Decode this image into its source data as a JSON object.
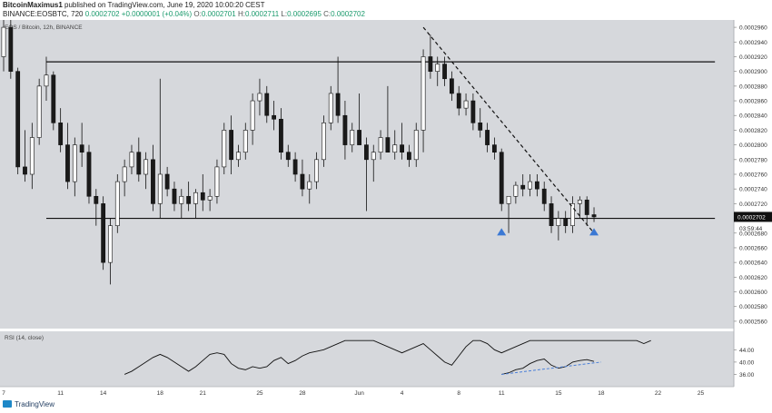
{
  "header": {
    "author": "BitcoinMaximus1",
    "published": "published on TradingView.com, June 19, 2020 10:00:20 CEST",
    "symbol": "BINANCE:EOSBTC, 720",
    "last": "0.0002702",
    "change": "+0.0000001 (+0.04%)",
    "o_label": "O:",
    "o_value": "0.0002701",
    "h_label": "H:",
    "h_value": "0.0002711",
    "l_label": "L:",
    "l_value": "0.0002695",
    "c_label": "C:",
    "c_value": "0.0002702"
  },
  "footer": {
    "brand": "TradingView"
  },
  "colors": {
    "pane": "#d6d8dc",
    "bull": "#ffffff",
    "bear": "#1a1a1a",
    "rsi_line": "#111111",
    "rsi_div": "#4a7fd8",
    "arrow": "#3a78d4",
    "price_tag": "#111111"
  },
  "chart_data": [
    {
      "type": "candlestick",
      "title": "EOS / Bitcoin, 12h, BINANCE",
      "ylim": [
        0.000255,
        0.000297
      ],
      "y_ticks": [
        "0.0002960",
        "0.0002940",
        "0.0002920",
        "0.0002900",
        "0.0002880",
        "0.0002860",
        "0.0002840",
        "0.0002820",
        "0.0002800",
        "0.0002780",
        "0.0002760",
        "0.0002740",
        "0.0002720",
        "0.0002680",
        "0.0002660",
        "0.0002640",
        "0.0002620",
        "0.0002600",
        "0.0002580",
        "0.0002560"
      ],
      "x_ticks": [
        {
          "label": "7",
          "i": 0
        },
        {
          "label": "11",
          "i": 8
        },
        {
          "label": "14",
          "i": 14
        },
        {
          "label": "18",
          "i": 22
        },
        {
          "label": "21",
          "i": 28
        },
        {
          "label": "25",
          "i": 36
        },
        {
          "label": "28",
          "i": 42
        },
        {
          "label": "Jun",
          "i": 50
        },
        {
          "label": "4",
          "i": 56
        },
        {
          "label": "8",
          "i": 64
        },
        {
          "label": "11",
          "i": 70
        },
        {
          "label": "15",
          "i": 78
        },
        {
          "label": "18",
          "i": 84
        },
        {
          "label": "22",
          "i": 92
        },
        {
          "label": "25",
          "i": 98
        }
      ],
      "x_extent": 101,
      "last_price_label": "0.0002702",
      "countdown": "03:59:44",
      "candles": [
        [
          0.000292,
          0.000298,
          0.00029,
          0.000296
        ],
        [
          0.000296,
          0.000297,
          0.000289,
          0.00029
        ],
        [
          0.00029,
          0.0002905,
          0.000276,
          0.000277
        ],
        [
          0.000277,
          0.000282,
          0.000275,
          0.000276
        ],
        [
          0.000276,
          0.000283,
          0.000274,
          0.000281
        ],
        [
          0.000281,
          0.000289,
          0.00028,
          0.000288
        ],
        [
          0.000288,
          0.000292,
          0.000286,
          0.0002895
        ],
        [
          0.0002895,
          0.00029,
          0.000282,
          0.000283
        ],
        [
          0.000283,
          0.000285,
          0.000279,
          0.00028
        ],
        [
          0.00028,
          0.000283,
          0.000274,
          0.000275
        ],
        [
          0.000275,
          0.000281,
          0.000273,
          0.00028
        ],
        [
          0.00028,
          0.000283,
          0.000277,
          0.000279
        ],
        [
          0.000279,
          0.00028,
          0.000272,
          0.000273
        ],
        [
          0.000273,
          0.000274,
          0.000269,
          0.000272
        ],
        [
          0.000272,
          0.000273,
          0.000263,
          0.000264
        ],
        [
          0.000264,
          0.00027,
          0.000261,
          0.000269
        ],
        [
          0.000269,
          0.000276,
          0.000268,
          0.000275
        ],
        [
          0.000275,
          0.000278,
          0.000273,
          0.000277
        ],
        [
          0.000277,
          0.00028,
          0.000276,
          0.000279
        ],
        [
          0.000279,
          0.000281,
          0.000275,
          0.000276
        ],
        [
          0.000276,
          0.000279,
          0.000274,
          0.000278
        ],
        [
          0.000278,
          0.00028,
          0.000271,
          0.000272
        ],
        [
          0.000272,
          0.000289,
          0.00027,
          0.000276
        ],
        [
          0.000276,
          0.000277,
          0.000273,
          0.000274
        ],
        [
          0.000274,
          0.000275,
          0.000271,
          0.000272
        ],
        [
          0.000272,
          0.000274,
          0.00027,
          0.000273
        ],
        [
          0.000273,
          0.000275,
          0.000271,
          0.000272
        ],
        [
          0.000272,
          0.000274,
          0.00027,
          0.0002735
        ],
        [
          0.0002735,
          0.000276,
          0.000271,
          0.0002725
        ],
        [
          0.0002725,
          0.000274,
          0.000271,
          0.000273
        ],
        [
          0.000273,
          0.000278,
          0.000272,
          0.000277
        ],
        [
          0.000277,
          0.000283,
          0.000276,
          0.000282
        ],
        [
          0.000282,
          0.000284,
          0.000276,
          0.000278
        ],
        [
          0.000278,
          0.00028,
          0.000277,
          0.000279
        ],
        [
          0.000279,
          0.000283,
          0.000278,
          0.000282
        ],
        [
          0.000282,
          0.000287,
          0.00028,
          0.000286
        ],
        [
          0.000286,
          0.000289,
          0.000284,
          0.000287
        ],
        [
          0.000287,
          0.000288,
          0.000283,
          0.000284
        ],
        [
          0.000284,
          0.000286,
          0.000282,
          0.0002835
        ],
        [
          0.0002835,
          0.000285,
          0.000278,
          0.000279
        ],
        [
          0.000279,
          0.00028,
          0.000277,
          0.000278
        ],
        [
          0.000278,
          0.000279,
          0.000275,
          0.000276
        ],
        [
          0.000276,
          0.000278,
          0.000273,
          0.000274
        ],
        [
          0.000274,
          0.000276,
          0.000272,
          0.000275
        ],
        [
          0.000275,
          0.000279,
          0.000274,
          0.000278
        ],
        [
          0.000278,
          0.000284,
          0.000277,
          0.000283
        ],
        [
          0.000283,
          0.000288,
          0.000282,
          0.000287
        ],
        [
          0.000287,
          0.000292,
          0.000283,
          0.000284
        ],
        [
          0.000284,
          0.000286,
          0.000278,
          0.00028
        ],
        [
          0.00028,
          0.000283,
          0.000279,
          0.000282
        ],
        [
          0.000282,
          0.000287,
          0.00028,
          0.00028
        ],
        [
          0.00028,
          0.000281,
          0.000271,
          0.000278
        ],
        [
          0.000278,
          0.00028,
          0.000275,
          0.000279
        ],
        [
          0.000279,
          0.000282,
          0.000278,
          0.000281
        ],
        [
          0.000281,
          0.000288,
          0.000279,
          0.000279
        ],
        [
          0.000279,
          0.000282,
          0.000278,
          0.00028
        ],
        [
          0.00028,
          0.000283,
          0.000278,
          0.000279
        ],
        [
          0.000279,
          0.00028,
          0.000277,
          0.000278
        ],
        [
          0.000278,
          0.000283,
          0.000277,
          0.000282
        ],
        [
          0.000282,
          0.000293,
          0.000279,
          0.000292
        ],
        [
          0.000292,
          0.000295,
          0.000289,
          0.00029
        ],
        [
          0.00029,
          0.000292,
          0.000288,
          0.000291
        ],
        [
          0.000291,
          0.000292,
          0.000288,
          0.000289
        ],
        [
          0.000289,
          0.00029,
          0.000286,
          0.000287
        ],
        [
          0.000287,
          0.000288,
          0.000284,
          0.000285
        ],
        [
          0.000285,
          0.000287,
          0.000284,
          0.000286
        ],
        [
          0.000286,
          0.000287,
          0.000282,
          0.000283
        ],
        [
          0.000283,
          0.000285,
          0.000281,
          0.000282
        ],
        [
          0.000282,
          0.000283,
          0.000279,
          0.00028
        ],
        [
          0.00028,
          0.000281,
          0.000278,
          0.000279
        ],
        [
          0.000279,
          0.0002795,
          0.000271,
          0.000272
        ],
        [
          0.000272,
          0.000273,
          0.000268,
          0.000273
        ],
        [
          0.000273,
          0.000275,
          0.000272,
          0.0002745
        ],
        [
          0.0002745,
          0.000276,
          0.000273,
          0.000274
        ],
        [
          0.000274,
          0.000276,
          0.000273,
          0.000275
        ],
        [
          0.000275,
          0.000276,
          0.000273,
          0.000274
        ],
        [
          0.000274,
          0.000275,
          0.000271,
          0.000272
        ],
        [
          0.000272,
          0.000273,
          0.000268,
          0.000269
        ],
        [
          0.000269,
          0.000271,
          0.000267,
          0.00027
        ],
        [
          0.00027,
          0.000271,
          0.000268,
          0.000269
        ],
        [
          0.000269,
          0.000273,
          0.000268,
          0.000272
        ],
        [
          0.000272,
          0.000273,
          0.00027,
          0.0002725
        ],
        [
          0.0002725,
          0.000273,
          0.000269,
          0.0002705
        ],
        [
          0.0002705,
          0.0002715,
          0.0002695,
          0.0002702
        ]
      ],
      "horizontal_lines": [
        {
          "y": 0.0002913,
          "from_i": 6,
          "to_i": 100
        },
        {
          "y": 0.00027,
          "from_i": 6,
          "to_i": 100
        }
      ],
      "trendline": {
        "from_i": 59,
        "from_y": 0.000296,
        "to_i": 83,
        "to_y": 0.000268
      },
      "markers": [
        {
          "i": 70,
          "y": 0.0002683
        },
        {
          "i": 83,
          "y": 0.0002683
        }
      ]
    },
    {
      "type": "line",
      "title": "RSI (14, close)",
      "ylim": [
        32,
        50
      ],
      "y_ticks": [
        "44.00",
        "40.00",
        "36.00"
      ],
      "values": [
        52,
        52,
        52,
        52,
        52,
        52,
        52,
        52,
        52,
        52,
        52,
        52,
        52,
        52,
        52,
        52,
        52,
        52,
        52,
        52,
        52,
        52,
        52,
        52,
        52,
        52,
        52,
        52,
        52,
        52,
        52,
        52,
        52,
        52,
        52,
        52,
        52,
        52,
        52,
        52,
        52,
        52,
        52,
        52,
        52,
        52,
        52,
        52,
        52,
        52,
        52,
        52,
        52,
        52,
        52,
        52,
        52,
        52,
        52,
        52,
        52,
        52,
        52,
        52,
        52,
        52,
        52,
        52,
        52,
        52,
        36,
        36.5,
        37.5,
        38,
        39.5,
        40.5,
        41,
        39,
        38,
        38.5,
        40,
        40.5,
        40.8,
        40.2
      ],
      "overlay_start": 17,
      "overlay_values": [
        36,
        37,
        38.5,
        40,
        41.5,
        42.5,
        41.5,
        40,
        38.5,
        37,
        38.5,
        40.5,
        42.5,
        43,
        42.5,
        39.5,
        38,
        37.5,
        38.5,
        38,
        38.5,
        40.5,
        41.5,
        39.5,
        40.5,
        42,
        43,
        43.5,
        44,
        45,
        46,
        47,
        47,
        47,
        47,
        47,
        46,
        45,
        44,
        43,
        44,
        45,
        46,
        44,
        42,
        40,
        39,
        42,
        45,
        47,
        47,
        46,
        44,
        43,
        44,
        45,
        46,
        47,
        47,
        47,
        47,
        47,
        47,
        47,
        47,
        47,
        47,
        47,
        47,
        47,
        47,
        47,
        47,
        46,
        47
      ],
      "divergence": {
        "from_i": 70,
        "from_y": 36.0,
        "to_i": 84,
        "to_y": 40.0
      }
    }
  ]
}
